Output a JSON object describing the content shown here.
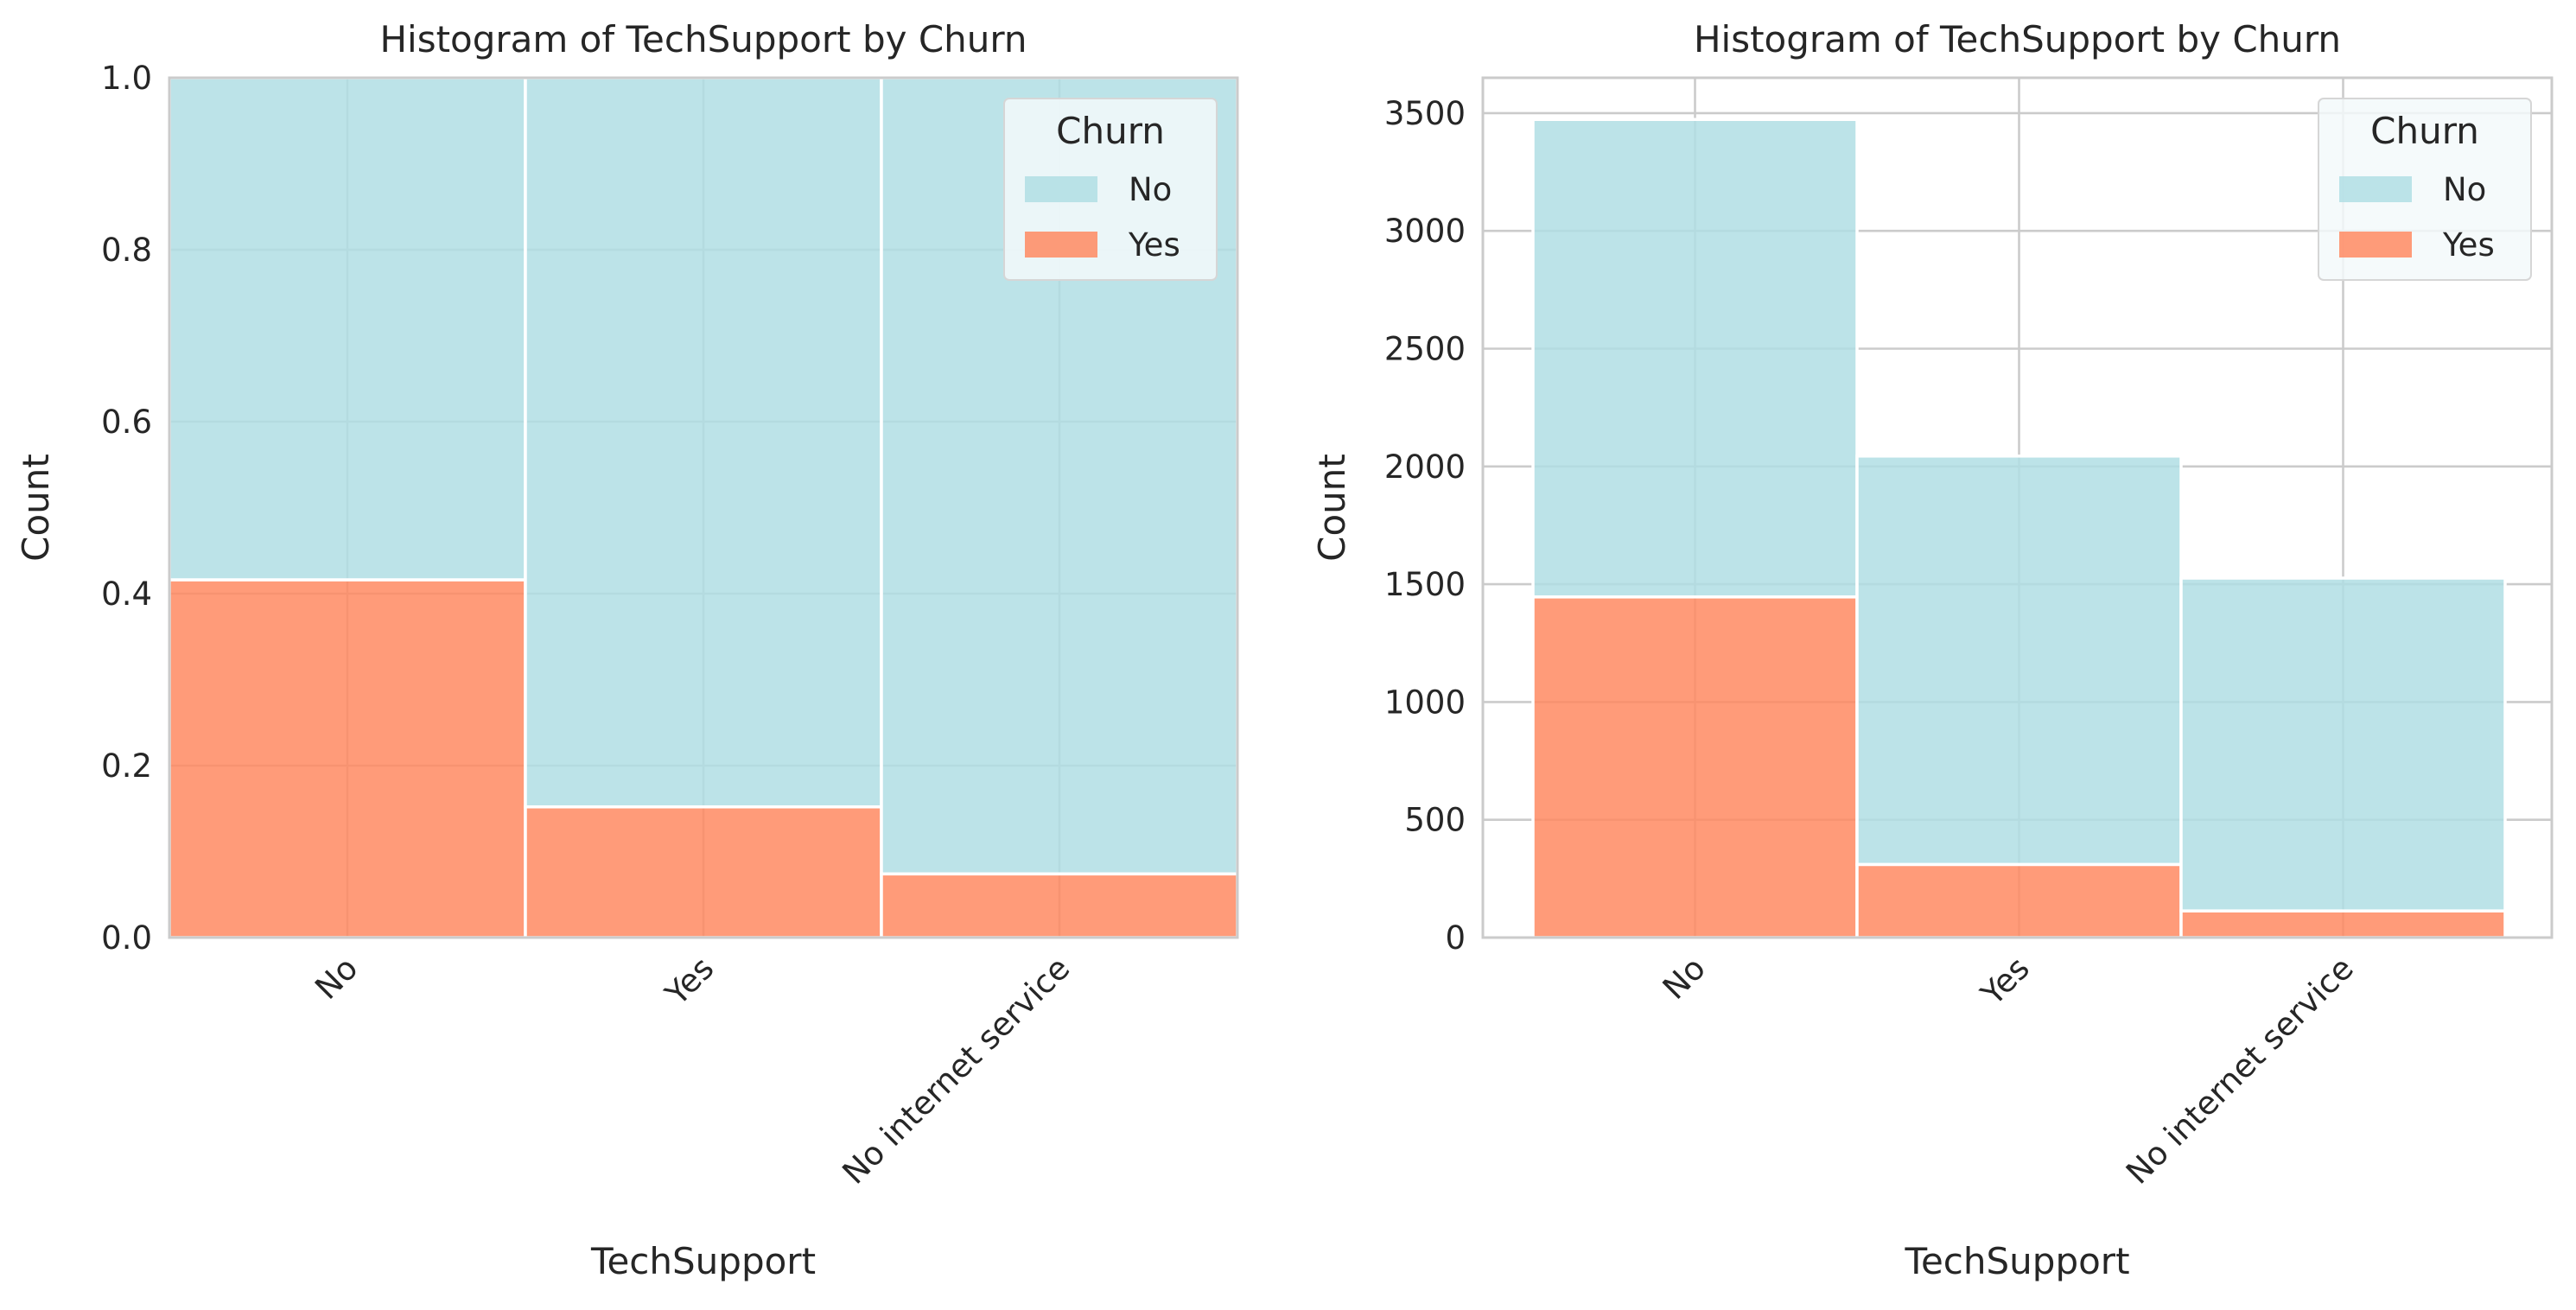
{
  "colors": {
    "no": "#b0dee4",
    "yes": "#ff8a62",
    "grid": "#cbcbcb",
    "spine": "#cbcbcb",
    "legend_bg": "#f3f9fa"
  },
  "chart_data": [
    {
      "type": "bar",
      "stacked": true,
      "normalized": true,
      "title": "Histogram of TechSupport by Churn",
      "xlabel": "TechSupport",
      "ylabel": "Count",
      "categories": [
        "No",
        "Yes",
        "No internet service"
      ],
      "ylim": [
        0,
        1.0
      ],
      "yticks": [
        0.0,
        0.2,
        0.4,
        0.6,
        0.8,
        1.0
      ],
      "ytick_labels": [
        "0.0",
        "0.2",
        "0.4",
        "0.6",
        "0.8",
        "1.0"
      ],
      "legend": {
        "title": "Churn",
        "placement": "top-right",
        "entries": [
          "No",
          "Yes"
        ]
      },
      "grid": true,
      "series": [
        {
          "name": "Yes",
          "values": [
            0.416,
            0.152,
            0.074
          ]
        },
        {
          "name": "No",
          "values": [
            0.584,
            0.848,
            0.926
          ]
        }
      ]
    },
    {
      "type": "bar",
      "stacked": true,
      "normalized": false,
      "title": "Histogram of TechSupport by Churn",
      "xlabel": "TechSupport",
      "ylabel": "Count",
      "categories": [
        "No",
        "Yes",
        "No internet service"
      ],
      "ylim": [
        0,
        3650
      ],
      "yticks": [
        0,
        500,
        1000,
        1500,
        2000,
        2500,
        3000,
        3500
      ],
      "ytick_labels": [
        "0",
        "500",
        "1000",
        "1500",
        "2000",
        "2500",
        "3000",
        "3500"
      ],
      "legend": {
        "title": "Churn",
        "placement": "top-right",
        "entries": [
          "No",
          "Yes"
        ]
      },
      "grid": true,
      "series": [
        {
          "name": "Yes",
          "values": [
            1446,
            310,
            113
          ]
        },
        {
          "name": "No",
          "values": [
            2027,
            1734,
            1413
          ]
        }
      ]
    }
  ]
}
